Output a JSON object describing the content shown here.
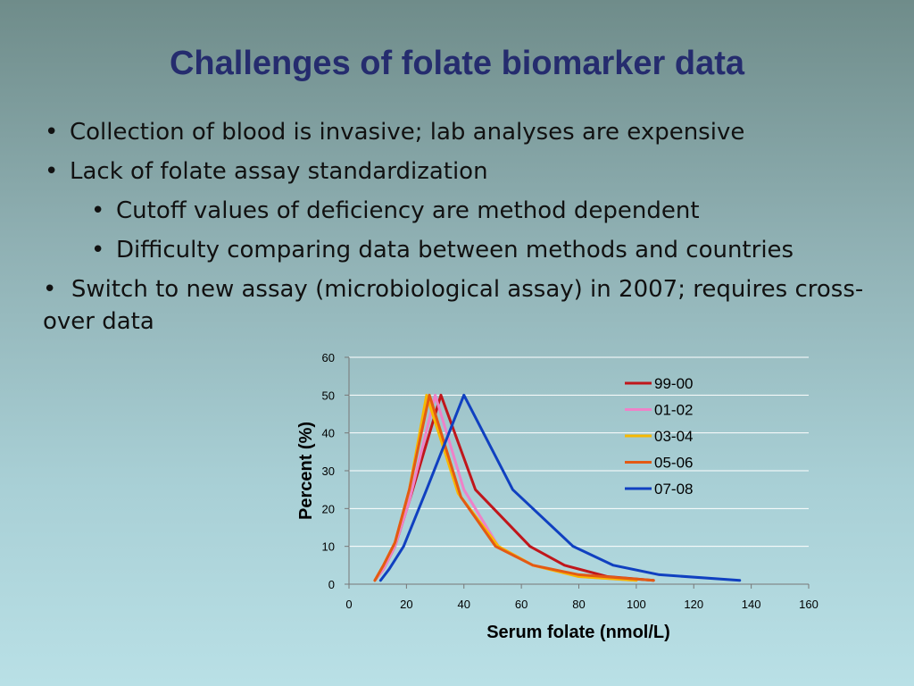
{
  "slide": {
    "title": "Challenges of folate biomarker data",
    "bullets": [
      "Collection of blood is invasive; lab analyses are expensive",
      "Lack of folate assay standardization",
      "Cutoff values of deficiency are method dependent",
      "Difficulty comparing data between methods and countries",
      "Switch to new assay (microbiological assay) in 2007; requires cross-over data"
    ],
    "bullet_char": "•"
  },
  "chart_data": {
    "type": "line",
    "xlabel": "Serum folate (nmol/L)",
    "ylabel": "Percent (%)",
    "xlim": [
      0,
      160
    ],
    "ylim": [
      0,
      60
    ],
    "xticks": [
      0,
      20,
      40,
      60,
      80,
      100,
      120,
      140,
      160
    ],
    "yticks": [
      0,
      10,
      20,
      30,
      40,
      50,
      60
    ],
    "grid": "horizontal",
    "legend": "top-right",
    "series": [
      {
        "name": "99-00",
        "color": "#c0161b",
        "x": [
          9,
          12,
          16,
          21,
          32,
          44,
          63,
          75,
          90,
          106
        ],
        "y": [
          1,
          4,
          10,
          22,
          50,
          25,
          10,
          5,
          2,
          1
        ]
      },
      {
        "name": "01-02",
        "color": "#ee82c8",
        "x": [
          9,
          12,
          16,
          21,
          30,
          40,
          52,
          64,
          80,
          100
        ],
        "y": [
          1,
          4,
          10,
          22,
          50,
          25,
          10,
          5,
          2,
          1
        ]
      },
      {
        "name": "03-04",
        "color": "#f7b800",
        "x": [
          9,
          12,
          16,
          21,
          27,
          38,
          52,
          64,
          80,
          100
        ],
        "y": [
          1,
          5,
          11,
          25,
          50,
          24,
          10,
          5,
          2,
          1
        ]
      },
      {
        "name": "05-06",
        "color": "#e35a14",
        "x": [
          9,
          12,
          16,
          21,
          28,
          39,
          51,
          64,
          80,
          106
        ],
        "y": [
          1,
          5,
          11,
          25,
          50,
          23,
          10,
          5,
          2.5,
          1
        ]
      },
      {
        "name": "07-08",
        "color": "#1040c0",
        "x": [
          11,
          14,
          19,
          27,
          40,
          57,
          78,
          92,
          108,
          136
        ],
        "y": [
          1,
          4,
          10,
          25,
          50,
          25,
          10,
          5,
          2.5,
          1
        ]
      }
    ]
  }
}
